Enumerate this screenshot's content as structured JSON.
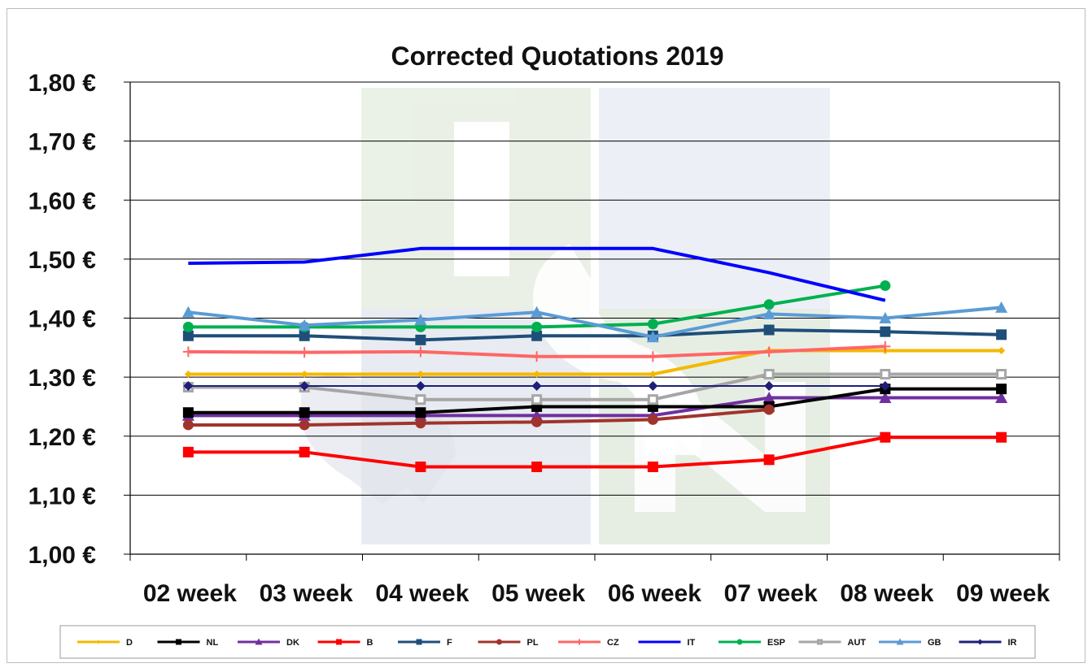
{
  "chart_data": {
    "type": "line",
    "title": "Corrected Quotations 2019",
    "xlabel": "",
    "ylabel": "",
    "categories": [
      "02 week",
      "03 week",
      "04 week",
      "05 week",
      "06 week",
      "07 week",
      "08 week",
      "09 week"
    ],
    "y_tick_labels": [
      "1,80 €",
      "1,70 €",
      "1,60 €",
      "1,50 €",
      "1,40 €",
      "1,30 €",
      "1,20 €",
      "1,10 €",
      "1,00 €"
    ],
    "ylim": [
      1.0,
      1.8
    ],
    "grid": true,
    "legend_position": "bottom",
    "series": [
      {
        "name": "D",
        "color": "#F5B800",
        "marker": "diamond-small",
        "values": [
          1.305,
          1.305,
          1.305,
          1.305,
          1.305,
          1.345,
          1.345,
          1.345
        ]
      },
      {
        "name": "NL",
        "color": "#000000",
        "marker": "square",
        "values": [
          1.24,
          1.24,
          1.24,
          1.25,
          1.25,
          1.25,
          1.28,
          1.28
        ]
      },
      {
        "name": "DK",
        "color": "#7030A0",
        "marker": "triangle",
        "values": [
          1.235,
          1.235,
          1.235,
          1.235,
          1.235,
          1.265,
          1.265,
          1.265
        ]
      },
      {
        "name": "B",
        "color": "#FF0000",
        "marker": "square",
        "values": [
          1.173,
          1.173,
          1.148,
          1.148,
          1.148,
          1.16,
          1.198,
          1.198
        ]
      },
      {
        "name": "F",
        "color": "#1F4E79",
        "marker": "square",
        "values": [
          1.37,
          1.37,
          1.363,
          1.37,
          1.37,
          1.38,
          1.377,
          1.372
        ]
      },
      {
        "name": "PL",
        "color": "#A0342C",
        "marker": "circle",
        "values": [
          1.219,
          1.219,
          1.222,
          1.224,
          1.228,
          1.245,
          null,
          null
        ]
      },
      {
        "name": "CZ",
        "color": "#FF6666",
        "marker": "plus",
        "values": [
          1.343,
          1.342,
          1.343,
          1.335,
          1.335,
          1.343,
          1.352,
          null
        ]
      },
      {
        "name": "IT",
        "color": "#0000FF",
        "marker": "none",
        "values": [
          1.493,
          1.495,
          1.518,
          1.518,
          1.518,
          1.477,
          1.43,
          null
        ]
      },
      {
        "name": "ESP",
        "color": "#00B050",
        "marker": "circle",
        "values": [
          1.385,
          1.385,
          1.385,
          1.385,
          1.39,
          1.423,
          1.455,
          null
        ]
      },
      {
        "name": "AUT",
        "color": "#A6A6A6",
        "marker": "square-open",
        "values": [
          1.283,
          1.283,
          1.262,
          1.262,
          1.262,
          1.305,
          1.305,
          1.305
        ]
      },
      {
        "name": "GB",
        "color": "#5B9BD5",
        "marker": "triangle",
        "values": [
          1.41,
          1.388,
          1.397,
          1.41,
          1.368,
          1.407,
          1.4,
          1.418
        ]
      },
      {
        "name": "IR",
        "color": "#1F1F7A",
        "marker": "diamond",
        "values": [
          1.285,
          1.285,
          1.285,
          1.285,
          1.285,
          1.285,
          1.285,
          null
        ]
      }
    ]
  }
}
